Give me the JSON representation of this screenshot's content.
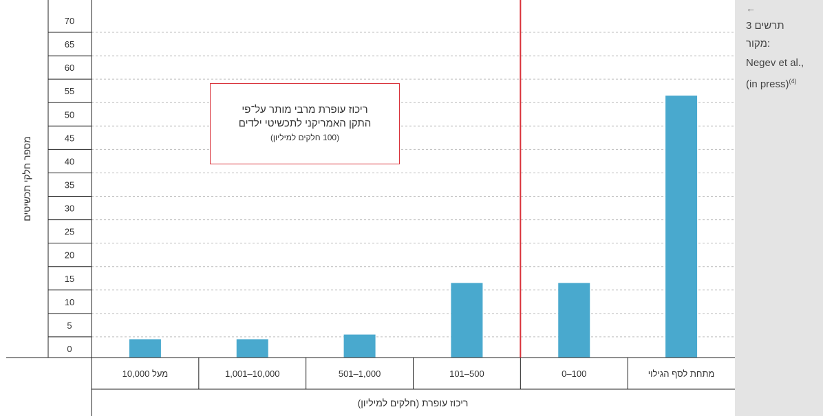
{
  "side_panel": {
    "arrow": "←",
    "figure_label": "תרשים 3",
    "source_label": "מקור:",
    "source_name": "Negev et al.,",
    "source_status": "(in press)",
    "source_ref": "(4)"
  },
  "annotation": {
    "line1": "ריכוז עופרת מרבי מותר על־פי",
    "line2": "התקן האמריקני לתכשיטי ילדים",
    "line3": "(100 חלקים למיליון)"
  },
  "chart_data": {
    "type": "bar",
    "ylabel": "מספר חלקי תכשיטים",
    "xlabel": "ריכוז עופרת (חלקים למיליון)",
    "ylim": [
      0,
      70
    ],
    "yticks": [
      0,
      5,
      10,
      15,
      20,
      25,
      30,
      35,
      40,
      45,
      50,
      55,
      60,
      65,
      70
    ],
    "categories": [
      "מתחת לסף הגילוי",
      "0–100",
      "101–500",
      "501–1,000",
      "1,001–10,000",
      "מעל 10,000"
    ],
    "values": [
      54,
      14,
      14,
      3,
      2,
      2
    ],
    "bar_color": "#49a9ce",
    "reference_line": {
      "between_categories": [
        1,
        2
      ],
      "color": "#d9323a"
    },
    "grid": true
  }
}
